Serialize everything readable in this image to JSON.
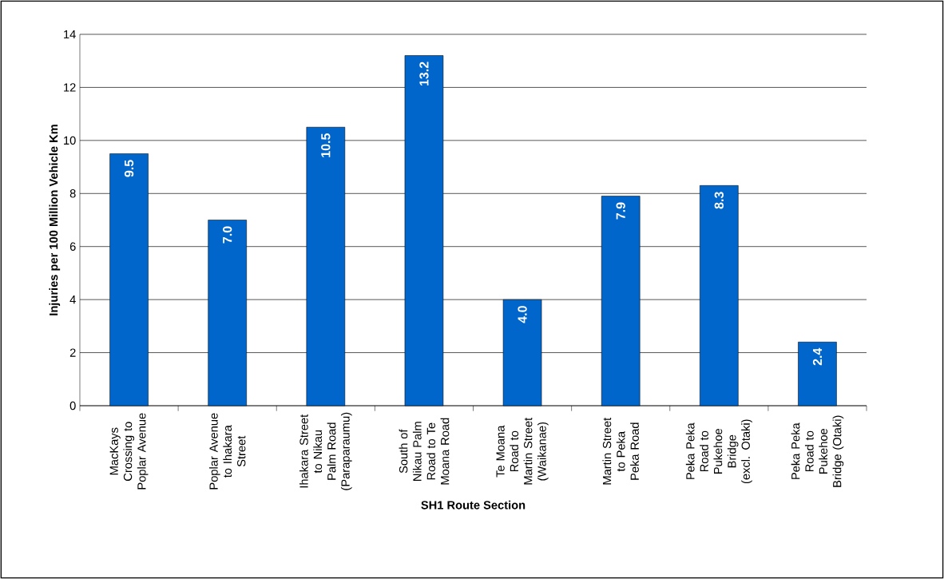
{
  "chart_data": {
    "type": "bar",
    "xlabel": "SH1 Route Section",
    "ylabel": "Injuries per 100 Million Vehicle Km",
    "categories": [
      "MacKays Crossing to Poplar Avenue",
      "Poplar Avenue to Ihakara Street",
      "Ihakara Street to Nikau Palm Road (Paraparaumu)",
      "South of Nikau Palm Road to Te Moana Road",
      "Te Moana Road to Martin Street (Waikanae)",
      "Martin Street to Peka Peka Road",
      "Peka Peka Road to Pukehoe Bridge (excl. Otaki)",
      "Peka Peka Road to Pukehoe Bridge (Otaki)"
    ],
    "values": [
      9.5,
      7.0,
      10.5,
      13.2,
      4.0,
      7.9,
      8.3,
      2.4
    ],
    "value_labels": [
      "9.5",
      "7.0",
      "10.5",
      "13.2",
      "4.0",
      "7.9",
      "8.3",
      "2.4"
    ],
    "color": "#0066cc",
    "ylim": [
      0,
      14
    ],
    "yticks": [
      0,
      2,
      4,
      6,
      8,
      10,
      12,
      14
    ],
    "grid": "y"
  }
}
